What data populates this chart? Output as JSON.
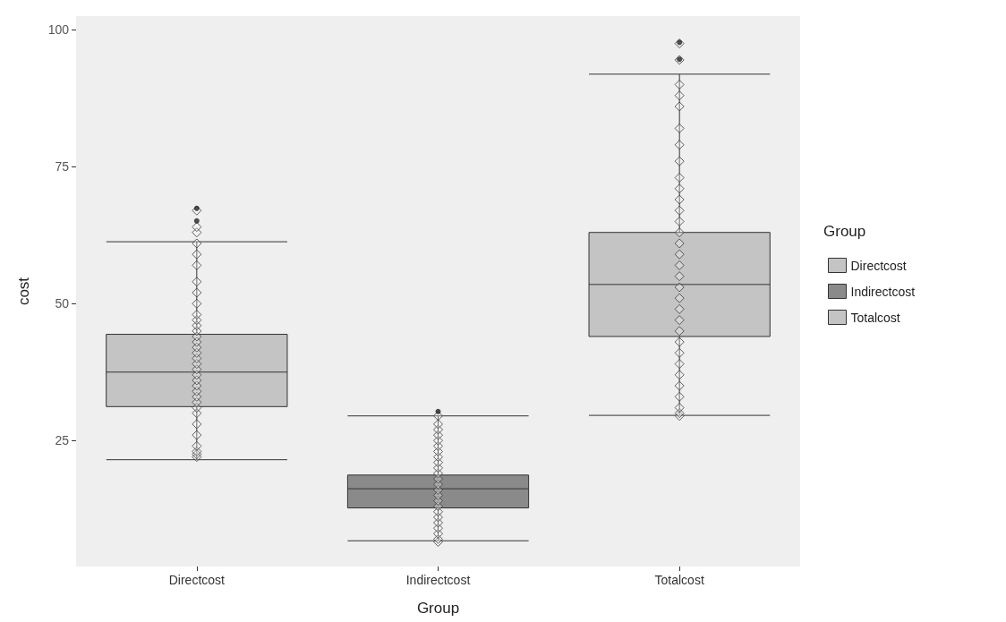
{
  "chart_data": {
    "type": "box",
    "xlabel": "Group",
    "ylabel": "cost",
    "legend_title": "Group",
    "legend": "right",
    "grid": false,
    "marker": "diamond",
    "categories": [
      "Directcost",
      "Indirectcost",
      "Totalcost"
    ],
    "ylim": [
      2,
      102.5
    ],
    "yticks": [
      25,
      50,
      75,
      100
    ],
    "series": [
      {
        "name": "Directcost",
        "color": "#c4c4c4",
        "boxes": [
          {
            "low": 21.5,
            "q1": 31.2,
            "median": 37.5,
            "q3": 44.4,
            "high": 61.3,
            "outliers": [
              65.1,
              67.4
            ]
          },
          null,
          null
        ]
      },
      {
        "name": "Indirectcost",
        "color": "#8a8a8a",
        "boxes": [
          null,
          {
            "low": 6.7,
            "q1": 12.7,
            "median": 16.2,
            "q3": 18.7,
            "high": 29.5,
            "outliers": [
              30.3
            ]
          },
          null
        ]
      },
      {
        "name": "Totalcost",
        "color": "#c4c4c4",
        "boxes": [
          null,
          null,
          {
            "low": 29.6,
            "q1": 44,
            "median": 53.5,
            "q3": 63,
            "high": 91.9,
            "outliers": [
              94.6,
              97.7
            ]
          }
        ]
      },
      {
        "type": "scatter",
        "color": "#3a3a3a",
        "x": [
          "Directcost",
          "Directcost",
          "Directcost",
          "Directcost",
          "Directcost",
          "Directcost",
          "Directcost",
          "Directcost",
          "Directcost",
          "Directcost",
          "Directcost",
          "Directcost",
          "Directcost",
          "Directcost",
          "Directcost",
          "Directcost",
          "Directcost",
          "Directcost",
          "Directcost",
          "Directcost",
          "Directcost",
          "Directcost",
          "Directcost",
          "Directcost",
          "Directcost",
          "Directcost",
          "Directcost",
          "Directcost",
          "Directcost",
          "Directcost",
          "Directcost",
          "Directcost",
          "Directcost",
          "Directcost",
          "Indirectcost",
          "Indirectcost",
          "Indirectcost",
          "Indirectcost",
          "Indirectcost",
          "Indirectcost",
          "Indirectcost",
          "Indirectcost",
          "Indirectcost",
          "Indirectcost",
          "Indirectcost",
          "Indirectcost",
          "Indirectcost",
          "Indirectcost",
          "Indirectcost",
          "Indirectcost",
          "Indirectcost",
          "Indirectcost",
          "Indirectcost",
          "Indirectcost",
          "Indirectcost",
          "Indirectcost",
          "Indirectcost",
          "Indirectcost",
          "Totalcost",
          "Totalcost",
          "Totalcost",
          "Totalcost",
          "Totalcost",
          "Totalcost",
          "Totalcost",
          "Totalcost",
          "Totalcost",
          "Totalcost",
          "Totalcost",
          "Totalcost",
          "Totalcost",
          "Totalcost",
          "Totalcost",
          "Totalcost",
          "Totalcost",
          "Totalcost",
          "Totalcost",
          "Totalcost",
          "Totalcost",
          "Totalcost",
          "Totalcost",
          "Totalcost",
          "Totalcost",
          "Totalcost",
          "Totalcost",
          "Totalcost",
          "Totalcost",
          "Totalcost",
          "Totalcost",
          "Totalcost"
        ],
        "values": [
          22,
          22.5,
          23,
          24,
          26,
          28,
          30,
          31,
          32,
          33,
          34,
          35,
          36,
          37,
          38,
          39,
          40,
          41,
          42,
          43,
          44,
          45,
          46,
          47,
          48,
          50,
          52,
          54,
          57,
          59,
          61,
          63,
          64,
          67,
          6.5,
          7,
          8,
          9,
          10,
          11,
          12,
          13,
          14,
          15,
          16,
          17,
          18,
          19,
          20,
          21,
          22,
          23,
          24,
          25,
          26,
          27,
          28,
          29.5,
          29.5,
          30,
          31,
          33,
          35,
          37,
          39,
          41,
          43,
          45,
          47,
          49,
          51,
          53,
          55,
          57,
          59,
          61,
          63,
          65,
          67,
          69,
          71,
          73,
          76,
          79,
          82,
          86,
          88,
          90,
          94.5,
          97.5
        ]
      }
    ]
  }
}
